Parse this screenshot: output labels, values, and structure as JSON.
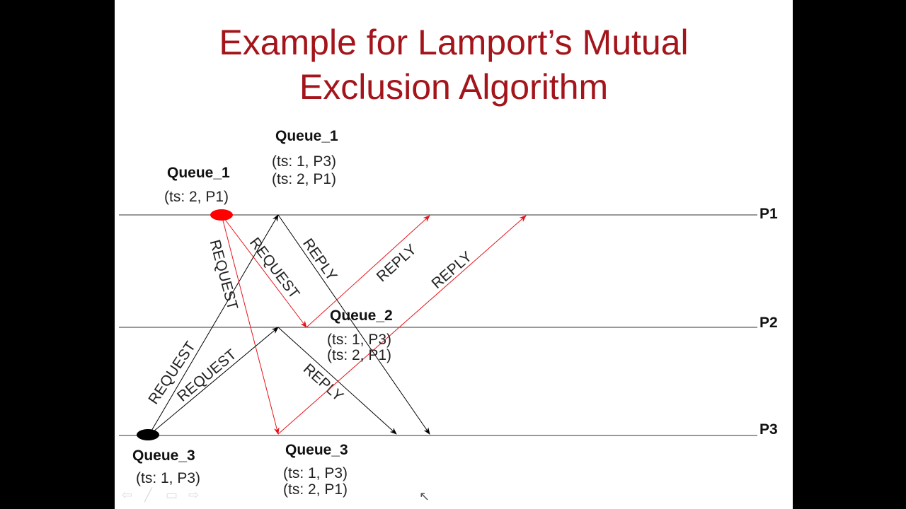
{
  "title_lines": [
    "Example for Lamport’s Mutual",
    "Exclusion Algorithm"
  ],
  "processes": [
    "P1",
    "P2",
    "P3"
  ],
  "queues": [
    {
      "name": "Queue_1",
      "entries": [
        "(ts: 2, P1)"
      ]
    },
    {
      "name": "Queue_1",
      "entries": [
        "(ts: 1, P3)",
        "(ts: 2, P1)"
      ]
    },
    {
      "name": "Queue_2",
      "entries": [
        "(ts: 1, P3)",
        "(ts: 2, P1)"
      ]
    },
    {
      "name": "Queue_3",
      "entries": [
        "(ts: 1, P3)"
      ]
    },
    {
      "name": "Queue_3",
      "entries": [
        "(ts: 1, P3)",
        "(ts: 2, P1)"
      ]
    }
  ],
  "messages": [
    {
      "label": "REQUEST",
      "from": "P3",
      "to": "P1",
      "color": "#000000"
    },
    {
      "label": "REQUEST",
      "from": "P3",
      "to": "P2",
      "color": "#000000"
    },
    {
      "label": "REPLY",
      "from": "P1",
      "to": "P3",
      "color": "#000000"
    },
    {
      "label": "REPLY",
      "from": "P2",
      "to": "P3",
      "color": "#000000"
    },
    {
      "label": "REQUEST",
      "from": "P1",
      "to": "P2",
      "color": "#e8141b"
    },
    {
      "label": "REQUEST",
      "from": "P1",
      "to": "P3",
      "color": "#e8141b"
    },
    {
      "label": "REPLY",
      "from": "P2",
      "to": "P1",
      "color": "#e8141b"
    },
    {
      "label": "REPLY",
      "from": "P3",
      "to": "P1",
      "color": "#e8141b"
    }
  ],
  "colors": {
    "title": "#a3151b",
    "p1_event": "#ff0000",
    "p3_event": "#000000"
  },
  "nav_icons": [
    "arrow-left-icon",
    "pen-icon",
    "menu-icon",
    "arrow-right-icon"
  ]
}
